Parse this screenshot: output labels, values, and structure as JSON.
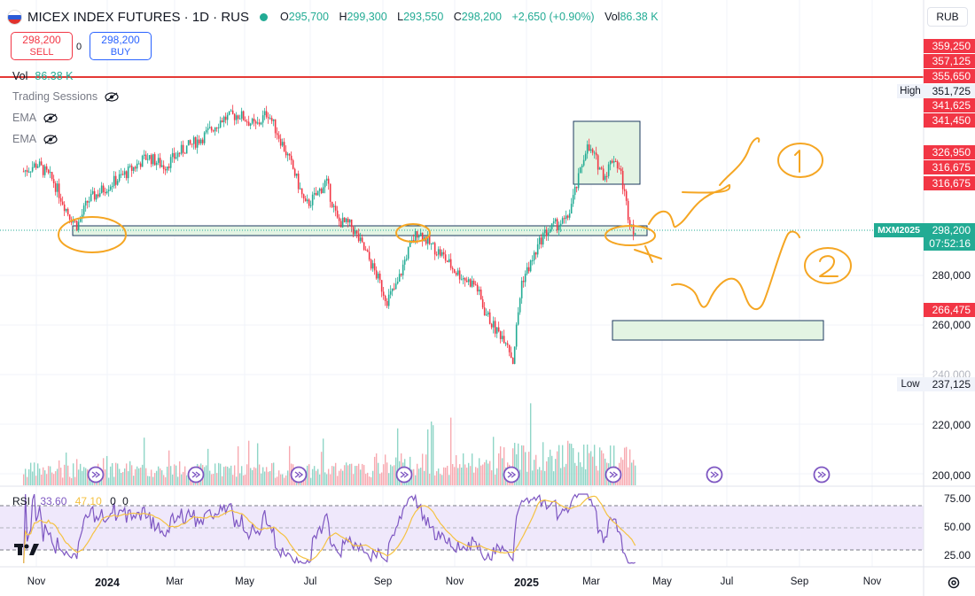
{
  "header": {
    "symbol_title": "MICEX INDEX FUTURES · 1D · RUS",
    "ohlc": [
      {
        "k": "O",
        "v": "295,700"
      },
      {
        "k": "H",
        "v": "299,300"
      },
      {
        "k": "L",
        "v": "293,550"
      },
      {
        "k": "C",
        "v": "298,200"
      },
      {
        "k": "",
        "v": "+2,650 (+0.90%)"
      },
      {
        "k": "Vol",
        "v": "86.38 K"
      }
    ],
    "currency": "RUB"
  },
  "trade": {
    "sell_price": "298,200",
    "sell_label": "SELL",
    "spread": "0",
    "buy_price": "298,200",
    "buy_label": "BUY"
  },
  "legend": {
    "vol_label": "Vol",
    "vol_value": "86.38 K",
    "trading_sessions": "Trading Sessions",
    "ema1": "EMA",
    "ema2": "EMA"
  },
  "price_scale": {
    "tags": [
      {
        "text": "359,250",
        "style": "red",
        "price": 359250
      },
      {
        "text": "357,125",
        "style": "red",
        "price": 357125
      },
      {
        "text": "355,650",
        "style": "red",
        "price": 355650
      },
      {
        "text": "351,725",
        "style": "plain",
        "price": 351725,
        "side": "High"
      },
      {
        "text": "341,625",
        "style": "red",
        "price": 341625
      },
      {
        "text": "341,450",
        "style": "red",
        "price": 341450
      },
      {
        "text": "326,950",
        "style": "red",
        "price": 326950
      },
      {
        "text": "316,675",
        "style": "red",
        "price": 316675
      },
      {
        "text": "316,675",
        "style": "red",
        "price": 316675
      },
      {
        "text": "266,475",
        "style": "red",
        "price": 266475
      },
      {
        "text": "237,125",
        "style": "plain",
        "price": 237125,
        "side": "Low"
      }
    ],
    "ticks": [
      "280,000",
      "260,000",
      "240,000",
      "220,000",
      "200,000"
    ],
    "current": {
      "symbol": "MXM2025",
      "price": "298,200",
      "countdown": "07:52:16"
    }
  },
  "rsi": {
    "label": "RSI",
    "rsi_value": "33.60",
    "ma_value": "47.10",
    "v3": "0",
    "v4": "0",
    "levels": [
      "75.00",
      "50.00",
      "25.00"
    ]
  },
  "time_axis": [
    "Nov",
    "2024",
    "Mar",
    "May",
    "Jul",
    "Sep",
    "Nov",
    "2025",
    "Mar",
    "May",
    "Jul",
    "Sep",
    "Nov"
  ],
  "annotations": {
    "circle1": "1",
    "circle2": "2"
  },
  "colors": {
    "up": "#22ab94",
    "down": "#f23645",
    "drawing": "#f5a623",
    "zone": "#e3f4e3",
    "zone_border": "#1e3a5f",
    "rsi_line": "#7e57c2",
    "rsi_ma": "#f5c242"
  },
  "chart_data": {
    "type": "candlestick",
    "timeframe": "1D",
    "y_range": [
      200000,
      362000
    ],
    "high": 351725,
    "low": 237125,
    "last": 298200,
    "path": [
      [
        "2023-10-20",
        322000
      ],
      [
        "2023-11-01",
        325000
      ],
      [
        "2023-11-15",
        318000
      ],
      [
        "2023-11-28",
        305000
      ],
      [
        "2023-12-06",
        300000
      ],
      [
        "2023-12-15",
        310000
      ],
      [
        "2024-01-01",
        316000
      ],
      [
        "2024-01-20",
        322000
      ],
      [
        "2024-02-05",
        328000
      ],
      [
        "2024-02-20",
        324000
      ],
      [
        "2024-03-05",
        330000
      ],
      [
        "2024-03-25",
        336000
      ],
      [
        "2024-04-10",
        343000
      ],
      [
        "2024-04-25",
        345000
      ],
      [
        "2024-05-10",
        340000
      ],
      [
        "2024-05-20",
        346000
      ],
      [
        "2024-06-01",
        334000
      ],
      [
        "2024-06-12",
        322000
      ],
      [
        "2024-06-22",
        308000
      ],
      [
        "2024-07-01",
        312000
      ],
      [
        "2024-07-10",
        318000
      ],
      [
        "2024-07-20",
        302000
      ],
      [
        "2024-08-01",
        300000
      ],
      [
        "2024-08-15",
        288000
      ],
      [
        "2024-08-25",
        278000
      ],
      [
        "2024-09-01",
        270000
      ],
      [
        "2024-09-10",
        276000
      ],
      [
        "2024-09-18",
        288000
      ],
      [
        "2024-09-28",
        298000
      ],
      [
        "2024-10-10",
        292000
      ],
      [
        "2024-10-20",
        288000
      ],
      [
        "2024-10-30",
        282000
      ],
      [
        "2024-11-10",
        278000
      ],
      [
        "2024-11-18",
        276000
      ],
      [
        "2024-11-25",
        266000
      ],
      [
        "2024-12-05",
        258000
      ],
      [
        "2024-12-15",
        254000
      ],
      [
        "2024-12-20",
        245000
      ],
      [
        "2024-12-24",
        262000
      ],
      [
        "2024-12-28",
        278000
      ],
      [
        "2025-01-05",
        285000
      ],
      [
        "2025-01-15",
        296000
      ],
      [
        "2025-01-25",
        300000
      ],
      [
        "2025-02-05",
        302000
      ],
      [
        "2025-02-15",
        318000
      ],
      [
        "2025-02-22",
        332000
      ],
      [
        "2025-03-01",
        328000
      ],
      [
        "2025-03-10",
        320000
      ],
      [
        "2025-03-18",
        328000
      ],
      [
        "2025-03-24",
        322000
      ],
      [
        "2025-03-31",
        304000
      ],
      [
        "2025-04-07",
        296000
      ]
    ],
    "volume_units": "K",
    "rsi": {
      "last": 33.6,
      "ma": 47.1
    }
  }
}
